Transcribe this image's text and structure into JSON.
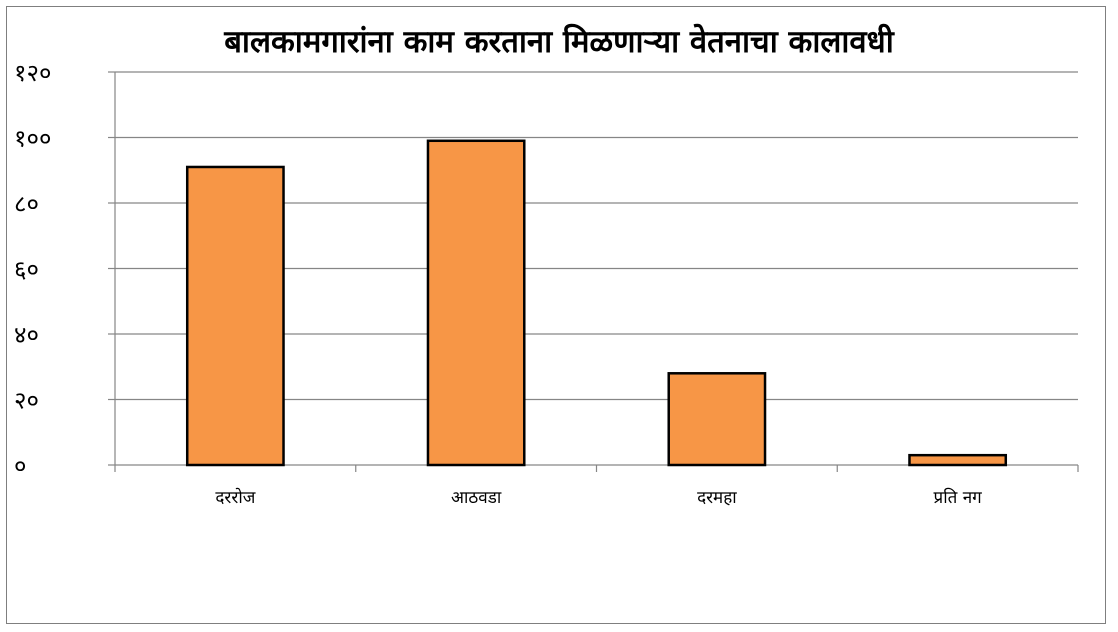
{
  "chart_data": {
    "type": "bar",
    "title": "बालकामगारांना काम करताना मिळणाऱ्या वेतनाचा कालावधी",
    "categories": [
      "दररोज",
      "आठवडा",
      "दरमहा",
      "प्रति नग"
    ],
    "values": [
      91,
      99,
      28,
      3
    ],
    "ylim": [
      0,
      120
    ],
    "yticks": [
      0,
      20,
      40,
      60,
      80,
      100,
      120
    ],
    "ytick_labels": [
      "०",
      "२०",
      "४०",
      "६०",
      "८०",
      "१००",
      "१२०"
    ],
    "xlabel": "",
    "ylabel": "",
    "grid": true,
    "legend": "none",
    "colors": {
      "bar_fill": "#f79646",
      "bar_stroke": "#000000",
      "grid": "#868686",
      "axis": "#868686"
    }
  }
}
